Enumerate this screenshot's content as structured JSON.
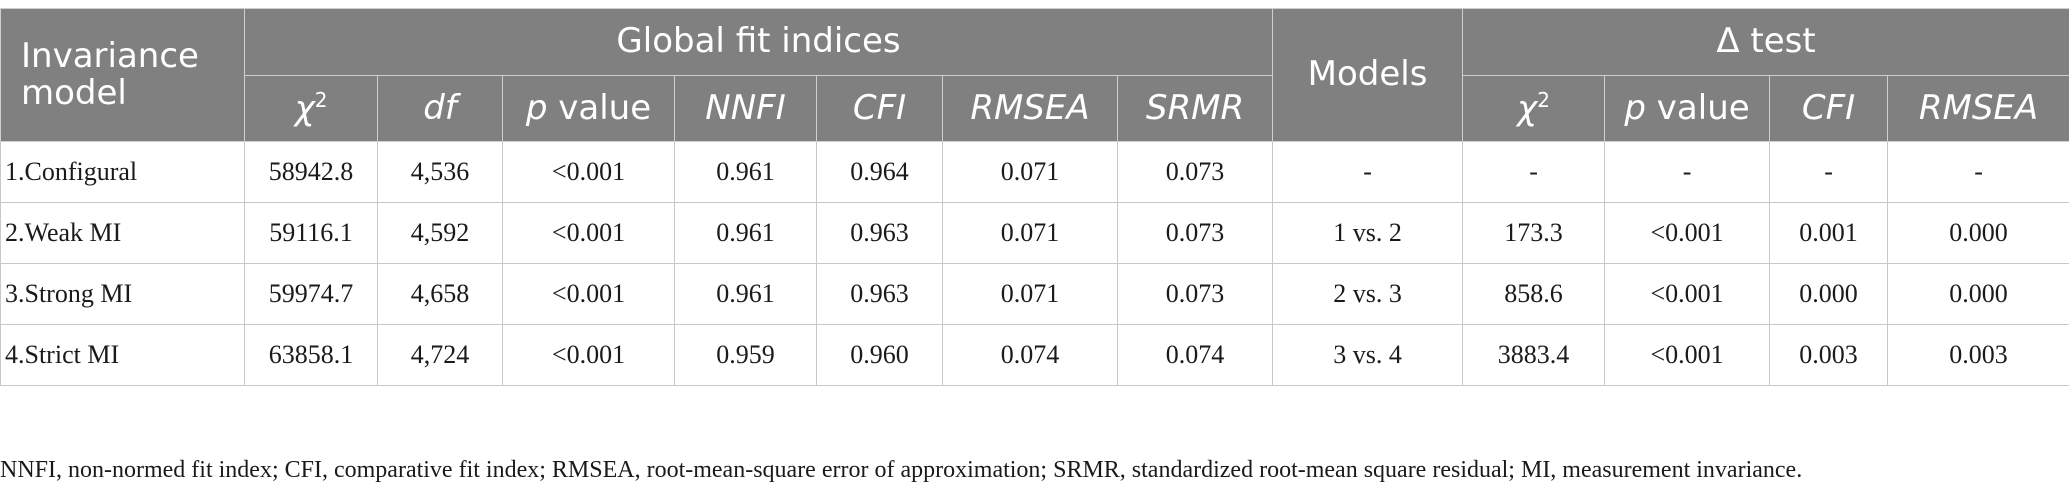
{
  "header": {
    "invariance_model": "Invariance model",
    "global_fit": "Global fit indices",
    "models": "Models",
    "delta_test": "Δ test",
    "global_cols": [
      {
        "key": "chi2",
        "italic": "χ",
        "sup": "2",
        "rest": ""
      },
      {
        "key": "df",
        "italic": "df",
        "sup": "",
        "rest": ""
      },
      {
        "key": "p",
        "italic": "p",
        "sup": "",
        "rest": " value"
      },
      {
        "key": "nnfi",
        "italic": "NNFI",
        "sup": "",
        "rest": ""
      },
      {
        "key": "cfi",
        "italic": "CFI",
        "sup": "",
        "rest": ""
      },
      {
        "key": "rmsea",
        "italic": "RMSEA",
        "sup": "",
        "rest": ""
      },
      {
        "key": "srmr",
        "italic": "SRMR",
        "sup": "",
        "rest": ""
      }
    ],
    "delta_cols": [
      {
        "key": "chi2",
        "italic": "χ",
        "sup": "2",
        "rest": ""
      },
      {
        "key": "p",
        "italic": "p",
        "sup": "",
        "rest": " value"
      },
      {
        "key": "cfi",
        "italic": "CFI",
        "sup": "",
        "rest": ""
      },
      {
        "key": "rmsea",
        "italic": "RMSEA",
        "sup": "",
        "rest": ""
      }
    ]
  },
  "rows": [
    {
      "model": "1.Configural",
      "chi2": "58942.8",
      "df": "4,536",
      "p": "<0.001",
      "nnfi": "0.961",
      "cfi": "0.964",
      "rmsea": "0.071",
      "srmr": "0.073",
      "models": "-",
      "d_chi2": "-",
      "d_p": "-",
      "d_cfi": "-",
      "d_rmsea": "-"
    },
    {
      "model": "2.Weak MI",
      "chi2": "59116.1",
      "df": "4,592",
      "p": "<0.001",
      "nnfi": "0.961",
      "cfi": "0.963",
      "rmsea": "0.071",
      "srmr": "0.073",
      "models": "1 vs. 2",
      "d_chi2": "173.3",
      "d_p": "<0.001",
      "d_cfi": "0.001",
      "d_rmsea": "0.000"
    },
    {
      "model": "3.Strong MI",
      "chi2": "59974.7",
      "df": "4,658",
      "p": "<0.001",
      "nnfi": "0.961",
      "cfi": "0.963",
      "rmsea": "0.071",
      "srmr": "0.073",
      "models": "2 vs. 3",
      "d_chi2": "858.6",
      "d_p": "<0.001",
      "d_cfi": "0.000",
      "d_rmsea": "0.000"
    },
    {
      "model": "4.Strict MI",
      "chi2": "63858.1",
      "df": "4,724",
      "p": "<0.001",
      "nnfi": "0.959",
      "cfi": "0.960",
      "rmsea": "0.074",
      "srmr": "0.074",
      "models": "3 vs. 4",
      "d_chi2": "3883.4",
      "d_p": "<0.001",
      "d_cfi": "0.003",
      "d_rmsea": "0.003"
    }
  ],
  "footnote": "NNFI, non-normed fit index; CFI, comparative fit index; RMSEA, root-mean-square error of approximation; SRMR, standardized root-mean square residual; MI, measurement invariance."
}
